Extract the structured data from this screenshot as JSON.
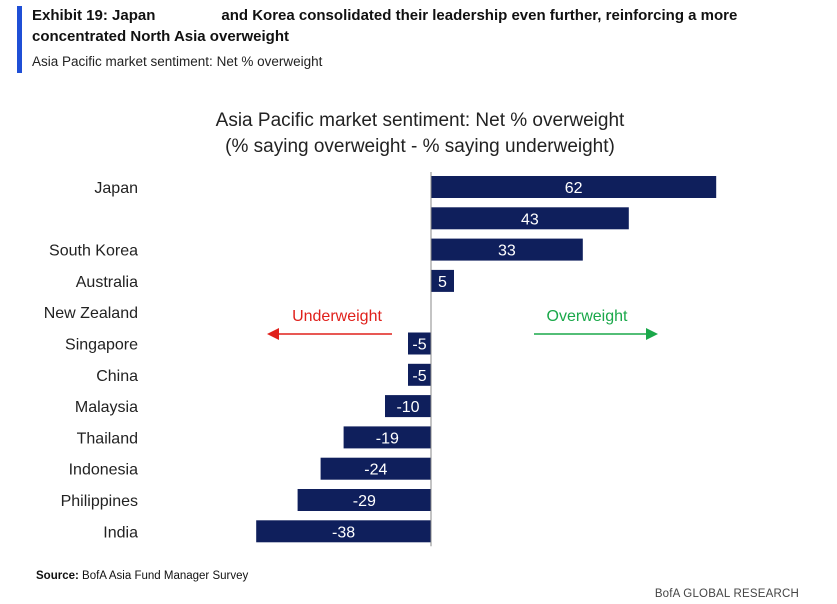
{
  "exhibit": {
    "title_part1": "Exhibit 19: Japan",
    "title_part2": "and Korea consolidated their leadership even further, reinforcing a more concentrated North Asia overweight",
    "subtitle": "Asia Pacific market sentiment: Net % overweight"
  },
  "chart_data": {
    "type": "bar",
    "orientation": "horizontal",
    "title": "Asia Pacific market sentiment: Net % overweight",
    "subtitle": "(% saying overweight - % saying underweight)",
    "categories": [
      "Japan",
      "",
      "South Korea",
      "Australia",
      "New Zealand",
      "Singapore",
      "China",
      "Malaysia",
      "Thailand",
      "Indonesia",
      "Philippines",
      "India"
    ],
    "values": [
      62,
      43,
      33,
      5,
      0,
      -5,
      -5,
      -10,
      -19,
      -24,
      -29,
      -38
    ],
    "data_labels": [
      "62",
      "43",
      "33",
      "5",
      "",
      "-5",
      "-5",
      "-10",
      "-19",
      "-24",
      "-29",
      "-38"
    ],
    "xlim": [
      -40,
      65
    ],
    "bar_color": "#0f1f5c",
    "annotations": {
      "underweight": {
        "text": "Underweight",
        "color": "#e0201b"
      },
      "overweight": {
        "text": "Overweight",
        "color": "#1aa84a"
      }
    }
  },
  "footer": {
    "source_label": "Source:",
    "source_text": "BofA Asia Fund Manager Survey",
    "brand": "BofA GLOBAL RESEARCH"
  }
}
